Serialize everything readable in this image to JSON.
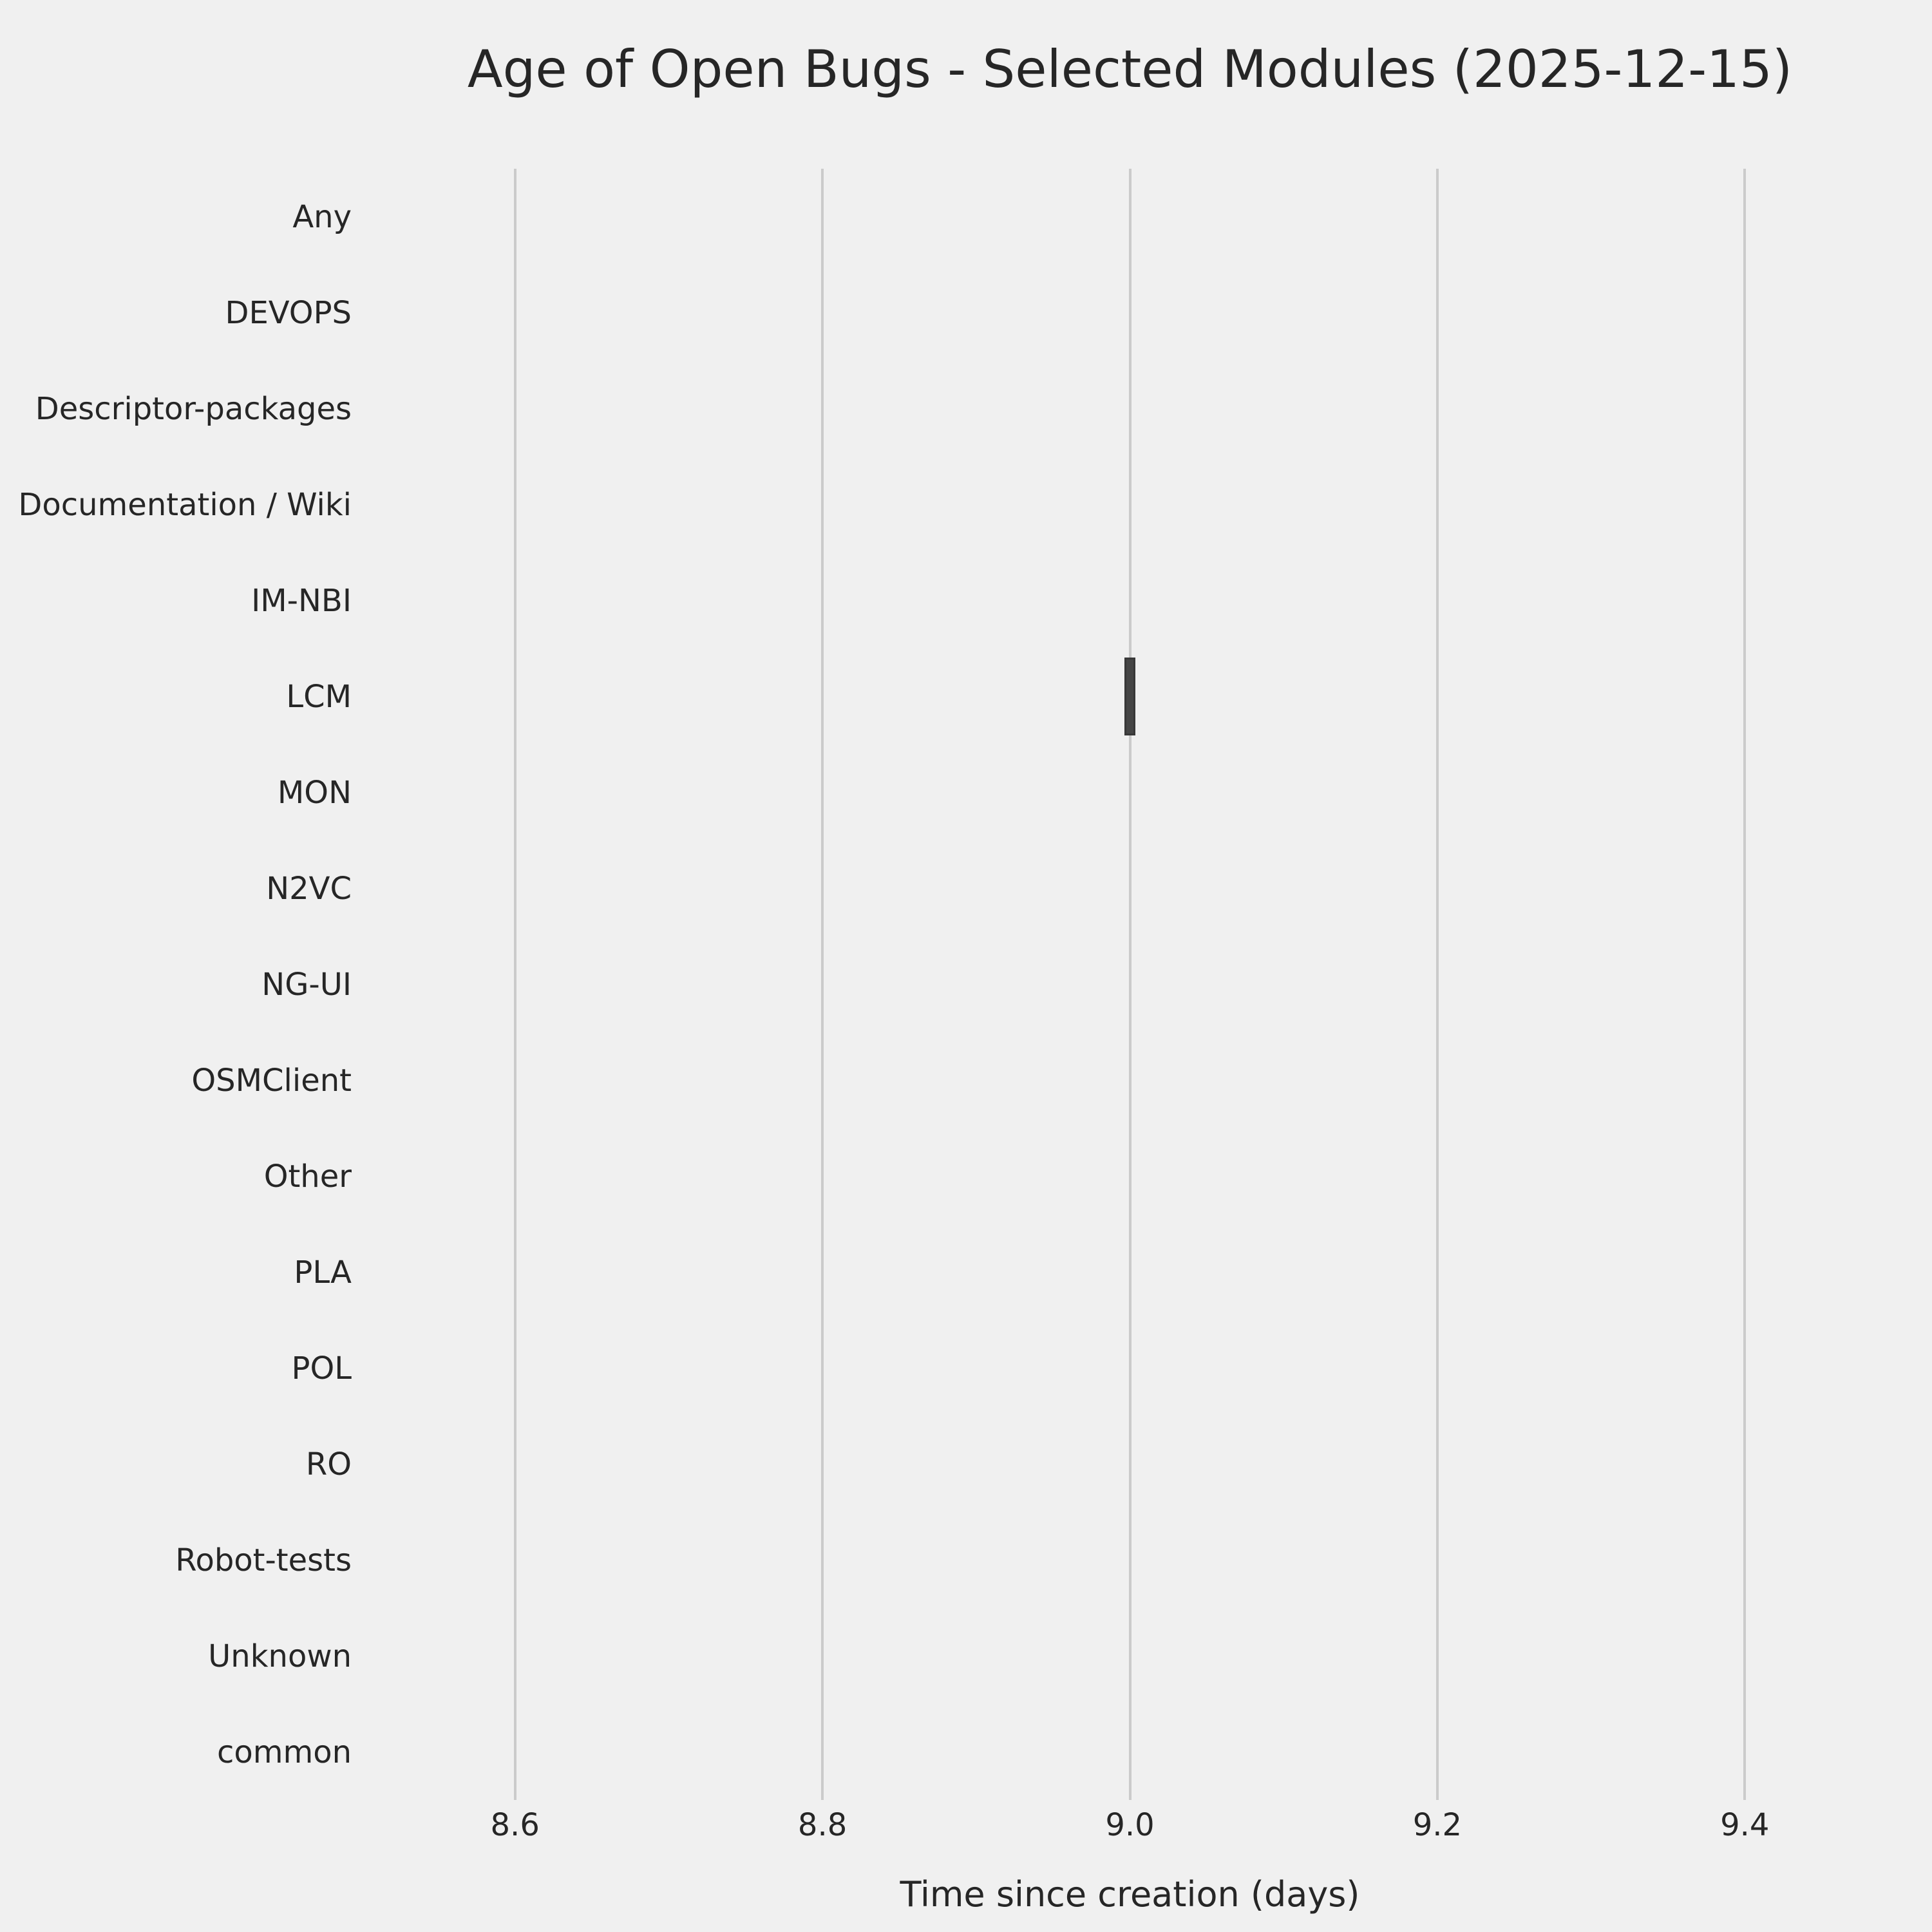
{
  "title": "Age of Open Bugs - Selected Modules (2025-12-15)",
  "chart_data": {
    "type": "boxplot",
    "orientation": "horizontal",
    "title": "Age of Open Bugs - Selected Modules (2025-12-15)",
    "xlabel": "Time since creation (days)",
    "ylabel": "",
    "categories": [
      "Any",
      "DEVOPS",
      "Descriptor-packages",
      "Documentation / Wiki",
      "IM-NBI",
      "LCM",
      "MON",
      "N2VC",
      "NG-UI",
      "OSMClient",
      "Other",
      "PLA",
      "POL",
      "RO",
      "Robot-tests",
      "Unknown",
      "common"
    ],
    "boxes": [
      {
        "category": "LCM",
        "whisker_low": 9.0,
        "q1": 9.0,
        "median": 9.0,
        "q3": 9.0,
        "whisker_high": 9.0
      }
    ],
    "xlim": [
      8.5,
      9.5
    ],
    "xticks": [
      8.6,
      8.8,
      9.0,
      9.2,
      9.4
    ],
    "grid": "vertical-only",
    "legend": "none",
    "colors": {
      "background": "#F0F0F0",
      "grid": "#CBCBCB",
      "text": "#262626",
      "box_fill": "#454545",
      "box_edge": "#383838"
    }
  }
}
